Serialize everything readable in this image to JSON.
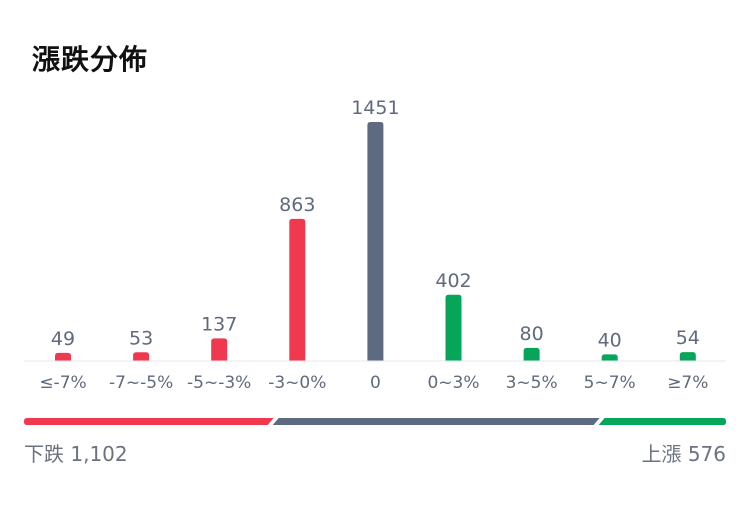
{
  "title": "漲跌分佈",
  "colors": {
    "down": "#f0384f",
    "flat": "#5e6a80",
    "up": "#05a55a",
    "label": "#5f6b7d",
    "axis": "#e5e7eb"
  },
  "chart_data": {
    "type": "bar",
    "title": "漲跌分佈",
    "categories": [
      "≤-7%",
      "-7~-5%",
      "-5~-3%",
      "-3~0%",
      "0",
      "0~3%",
      "3~5%",
      "5~7%",
      "≥7%"
    ],
    "values": [
      49,
      53,
      137,
      863,
      1451,
      402,
      80,
      40,
      54
    ],
    "bar_groups": [
      "down",
      "down",
      "down",
      "down",
      "flat",
      "up",
      "up",
      "up",
      "up"
    ],
    "ylim": [
      0,
      1451
    ],
    "grid": false,
    "legend": "none"
  },
  "summary": {
    "down_text": "下跌 1,102",
    "up_text": "上漲 576",
    "down_count": 1102,
    "flat_count": 1451,
    "up_count": 576
  }
}
